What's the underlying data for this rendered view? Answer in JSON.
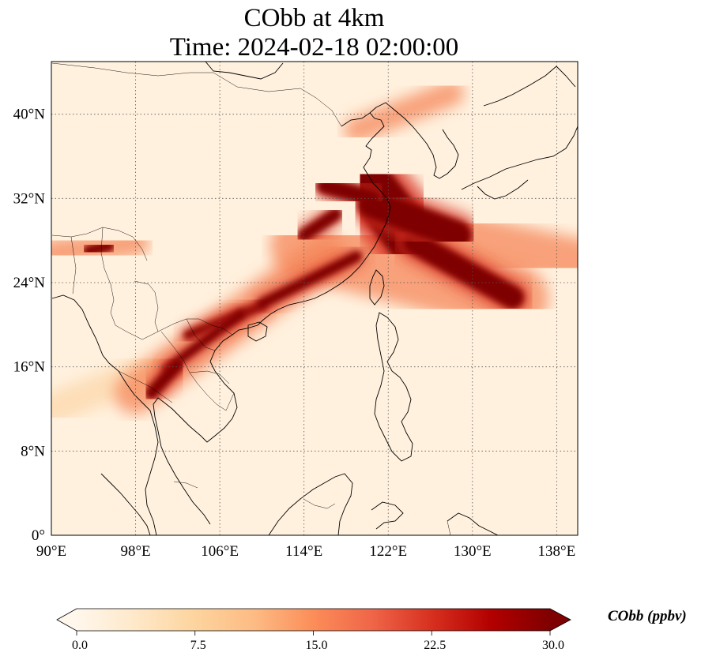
{
  "title": {
    "line1": "CObb at 4km",
    "line2": "Time: 2024-02-18 02:00:00"
  },
  "map": {
    "projection": "PlateCarree",
    "lon_range": [
      90,
      140
    ],
    "lat_range": [
      0,
      45
    ],
    "gridlines": true,
    "gridline_style": "dotted",
    "lon_ticks": [
      {
        "value": 90,
        "label": "90°E"
      },
      {
        "value": 98,
        "label": "98°E"
      },
      {
        "value": 106,
        "label": "106°E"
      },
      {
        "value": 114,
        "label": "114°E"
      },
      {
        "value": 122,
        "label": "122°E"
      },
      {
        "value": 130,
        "label": "130°E"
      },
      {
        "value": 138,
        "label": "138°E"
      }
    ],
    "lat_ticks": [
      {
        "value": 0,
        "label": "0°"
      },
      {
        "value": 8,
        "label": "8°N"
      },
      {
        "value": 16,
        "label": "16°N"
      },
      {
        "value": 24,
        "label": "24°N"
      },
      {
        "value": 32,
        "label": "32°N"
      },
      {
        "value": 40,
        "label": "40°N"
      }
    ],
    "plume_field": [
      {
        "kind": "core",
        "from": [
          120.2,
          33.2
        ],
        "to": [
          124.5,
          27.8
        ],
        "halfwidth_deg": 2.4
      },
      {
        "kind": "core",
        "from": [
          124.5,
          27.8
        ],
        "to": [
          133.8,
          22.6
        ],
        "halfwidth_deg": 1.1
      },
      {
        "kind": "core",
        "from": [
          120.5,
          31.5
        ],
        "to": [
          128.5,
          28.5
        ],
        "halfwidth_deg": 1.4
      },
      {
        "kind": "core",
        "from": [
          116,
          33.2
        ],
        "to": [
          120.5,
          32.0
        ],
        "halfwidth_deg": 0.8
      },
      {
        "kind": "core",
        "from": [
          114,
          28.5
        ],
        "to": [
          117,
          30.5
        ],
        "halfwidth_deg": 0.6
      },
      {
        "kind": "core",
        "from": [
          103,
          19.0
        ],
        "to": [
          110,
          21.8
        ],
        "halfwidth_deg": 0.45
      },
      {
        "kind": "core",
        "from": [
          110,
          22.0
        ],
        "to": [
          119,
          26.5
        ],
        "halfwidth_deg": 0.5
      },
      {
        "kind": "core",
        "from": [
          101,
          15.8
        ],
        "to": [
          108,
          21.0
        ],
        "halfwidth_deg": 0.45
      },
      {
        "kind": "core",
        "from": [
          99.5,
          13.5
        ],
        "to": [
          102,
          16.2
        ],
        "halfwidth_deg": 0.6
      },
      {
        "kind": "core",
        "from": [
          93.5,
          27.0
        ],
        "to": [
          95.5,
          27.5
        ],
        "halfwidth_deg": 0.5
      },
      {
        "kind": "halo",
        "from": [
          114,
          27.5
        ],
        "to": [
          134,
          22.5
        ],
        "halfwidth_deg": 3.2
      },
      {
        "kind": "halo",
        "from": [
          98,
          13.5
        ],
        "to": [
          116,
          26.5
        ],
        "halfwidth_deg": 2.0
      },
      {
        "kind": "halo",
        "from": [
          90,
          26.8
        ],
        "to": [
          98,
          27.8
        ],
        "halfwidth_deg": 1.3
      },
      {
        "kind": "halo",
        "from": [
          119,
          38.5
        ],
        "to": [
          128,
          42
        ],
        "halfwidth_deg": 1.2
      },
      {
        "kind": "halo",
        "from": [
          126,
          29
        ],
        "to": [
          140,
          26
        ],
        "halfwidth_deg": 2.2
      },
      {
        "kind": "faint",
        "from": [
          90,
          18
        ],
        "to": [
          100,
          18
        ],
        "halfwidth_deg": 1.5
      },
      {
        "kind": "faint",
        "from": [
          90,
          12
        ],
        "to": [
          100,
          16
        ],
        "halfwidth_deg": 1.5
      }
    ]
  },
  "colorbar": {
    "label": "CObb (ppbv)",
    "cmap": "OrRd",
    "min": 0.0,
    "max": 30.0,
    "extend": "both",
    "colors": [
      "#fff7ec",
      "#fee8c8",
      "#fdd49e",
      "#fdbb84",
      "#fc8d59",
      "#ef6548",
      "#d7301f",
      "#b30000",
      "#7f0000"
    ],
    "ticks": [
      {
        "value": 0.0,
        "label": "0.0"
      },
      {
        "value": 7.5,
        "label": "7.5"
      },
      {
        "value": 15.0,
        "label": "15.0"
      },
      {
        "value": 22.5,
        "label": "22.5"
      },
      {
        "value": 30.0,
        "label": "30.0"
      }
    ]
  }
}
